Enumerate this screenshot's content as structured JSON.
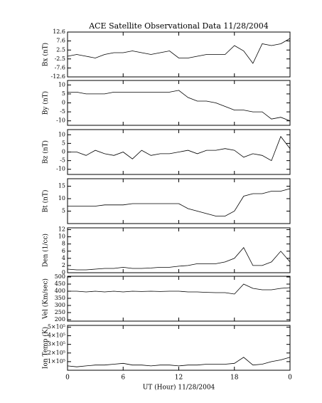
{
  "chart_data": [
    {
      "type": "line",
      "title": "ACE Satellite Observational Data   11/28/2004",
      "ylabel": "Bx (nT)",
      "ylim": [
        -12.6,
        12.6
      ],
      "yticks": [
        -12.6,
        -7.6,
        -2.5,
        2.5,
        7.6,
        12.6
      ],
      "xlim": [
        0,
        24
      ],
      "xticks": [
        0,
        6,
        12,
        18,
        24
      ],
      "color": "#000000",
      "x": [
        0,
        1,
        2,
        3,
        4,
        5,
        6,
        7,
        8,
        9,
        10,
        11,
        12,
        13,
        14,
        15,
        16,
        17,
        18,
        19,
        20,
        21,
        22,
        23,
        24
      ],
      "values": [
        -1,
        0,
        -1,
        -2,
        0,
        1,
        1,
        2,
        1,
        0,
        1,
        2,
        -2,
        -2,
        -1,
        0,
        0,
        0,
        5,
        2,
        -5,
        6,
        5,
        6,
        9
      ]
    },
    {
      "type": "line",
      "ylabel": "By (nT)",
      "ylim": [
        -12.5,
        12.5
      ],
      "yticks": [
        -10,
        -5,
        0,
        5,
        10
      ],
      "xlim": [
        0,
        24
      ],
      "xticks": [
        0,
        6,
        12,
        18,
        24
      ],
      "color": "#000000",
      "x": [
        0,
        1,
        2,
        3,
        4,
        5,
        6,
        7,
        8,
        9,
        10,
        11,
        12,
        13,
        14,
        15,
        16,
        17,
        18,
        19,
        20,
        21,
        22,
        23,
        24
      ],
      "values": [
        6,
        6,
        5,
        5,
        5,
        6,
        6,
        6,
        6,
        6,
        6,
        6,
        7,
        3,
        1,
        1,
        0,
        -2,
        -4,
        -4,
        -5,
        -5,
        -9,
        -8,
        -10
      ]
    },
    {
      "type": "line",
      "ylabel": "Bz (nT)",
      "ylim": [
        -13,
        13
      ],
      "yticks": [
        -10,
        -5,
        0,
        5,
        10
      ],
      "xlim": [
        0,
        24
      ],
      "xticks": [
        0,
        6,
        12,
        18,
        24
      ],
      "color": "#000000",
      "x": [
        0,
        1,
        2,
        3,
        4,
        5,
        6,
        7,
        8,
        9,
        10,
        11,
        12,
        13,
        14,
        15,
        16,
        17,
        18,
        19,
        20,
        21,
        22,
        23,
        24
      ],
      "values": [
        0,
        0,
        -2,
        1,
        -1,
        -2,
        0,
        -4,
        1,
        -2,
        -1,
        -1,
        0,
        1,
        -1,
        1,
        1,
        2,
        1,
        -3,
        -1,
        -2,
        -5,
        9,
        2
      ]
    },
    {
      "type": "line",
      "ylabel": "Bt (nT)",
      "ylim": [
        0,
        18
      ],
      "yticks": [
        5,
        10,
        15
      ],
      "xlim": [
        0,
        24
      ],
      "xticks": [
        0,
        6,
        12,
        18,
        24
      ],
      "color": "#000000",
      "x": [
        0,
        1,
        2,
        3,
        4,
        5,
        6,
        7,
        8,
        9,
        10,
        11,
        12,
        13,
        14,
        15,
        16,
        17,
        18,
        19,
        20,
        21,
        22,
        23,
        24
      ],
      "values": [
        7,
        7,
        7,
        7,
        7.5,
        7.5,
        7.5,
        8,
        8,
        8,
        8,
        8,
        8,
        6,
        5,
        4,
        3,
        3,
        5,
        11,
        12,
        12,
        13,
        13,
        14
      ]
    },
    {
      "type": "line",
      "ylabel": "Den (1/cc)",
      "ylim": [
        0,
        12.5
      ],
      "yticks": [
        0,
        2,
        4,
        6,
        8,
        10,
        12
      ],
      "xlim": [
        0,
        24
      ],
      "xticks": [
        0,
        6,
        12,
        18,
        24
      ],
      "color": "#000000",
      "x": [
        0,
        1,
        2,
        3,
        4,
        5,
        6,
        7,
        8,
        9,
        10,
        11,
        12,
        13,
        14,
        15,
        16,
        17,
        18,
        19,
        20,
        21,
        22,
        23,
        24
      ],
      "values": [
        1,
        0.8,
        0.8,
        1,
        1.2,
        1.2,
        1.5,
        1.2,
        1.2,
        1.3,
        1.5,
        1.5,
        1.8,
        2,
        2.5,
        2.5,
        2.5,
        3,
        4,
        7,
        2,
        2,
        3,
        6,
        3
      ]
    },
    {
      "type": "line",
      "ylabel": "Vel (Km/sec)",
      "ylim": [
        190,
        505
      ],
      "yticks": [
        200,
        250,
        300,
        350,
        400,
        450,
        500
      ],
      "xlim": [
        0,
        24
      ],
      "xticks": [
        0,
        6,
        12,
        18,
        24
      ],
      "color": "#000000",
      "x": [
        0,
        1,
        2,
        3,
        4,
        5,
        6,
        7,
        8,
        9,
        10,
        11,
        12,
        13,
        14,
        15,
        16,
        17,
        18,
        19,
        20,
        21,
        22,
        23,
        24
      ],
      "values": [
        400,
        400,
        395,
        400,
        395,
        400,
        395,
        400,
        398,
        400,
        398,
        400,
        400,
        395,
        395,
        392,
        390,
        390,
        380,
        450,
        420,
        410,
        410,
        420,
        425
      ]
    },
    {
      "type": "line",
      "ylabel": "Ion Temp (K)",
      "xlabel": "UT (Hour)  11/28/2004",
      "ylim": [
        0,
        520000
      ],
      "yticks": [
        {
          "value": 100000,
          "label": "1×10⁵"
        },
        {
          "value": 200000,
          "label": "2×10⁵"
        },
        {
          "value": 300000,
          "label": "3×10⁵"
        },
        {
          "value": 400000,
          "label": "4×10⁵"
        },
        {
          "value": 500000,
          "label": "5×10⁵"
        }
      ],
      "xlim": [
        0,
        24
      ],
      "xticks": [
        0,
        6,
        12,
        18,
        {
          "value": 24,
          "label": "0"
        }
      ],
      "color": "#000000",
      "x": [
        0,
        1,
        2,
        3,
        4,
        5,
        6,
        7,
        8,
        9,
        10,
        11,
        12,
        13,
        14,
        15,
        16,
        17,
        18,
        19,
        20,
        21,
        22,
        23,
        24
      ],
      "values": [
        50000,
        40000,
        50000,
        60000,
        60000,
        70000,
        80000,
        60000,
        60000,
        50000,
        60000,
        60000,
        50000,
        60000,
        60000,
        70000,
        70000,
        70000,
        80000,
        150000,
        60000,
        70000,
        100000,
        120000,
        150000
      ]
    }
  ]
}
